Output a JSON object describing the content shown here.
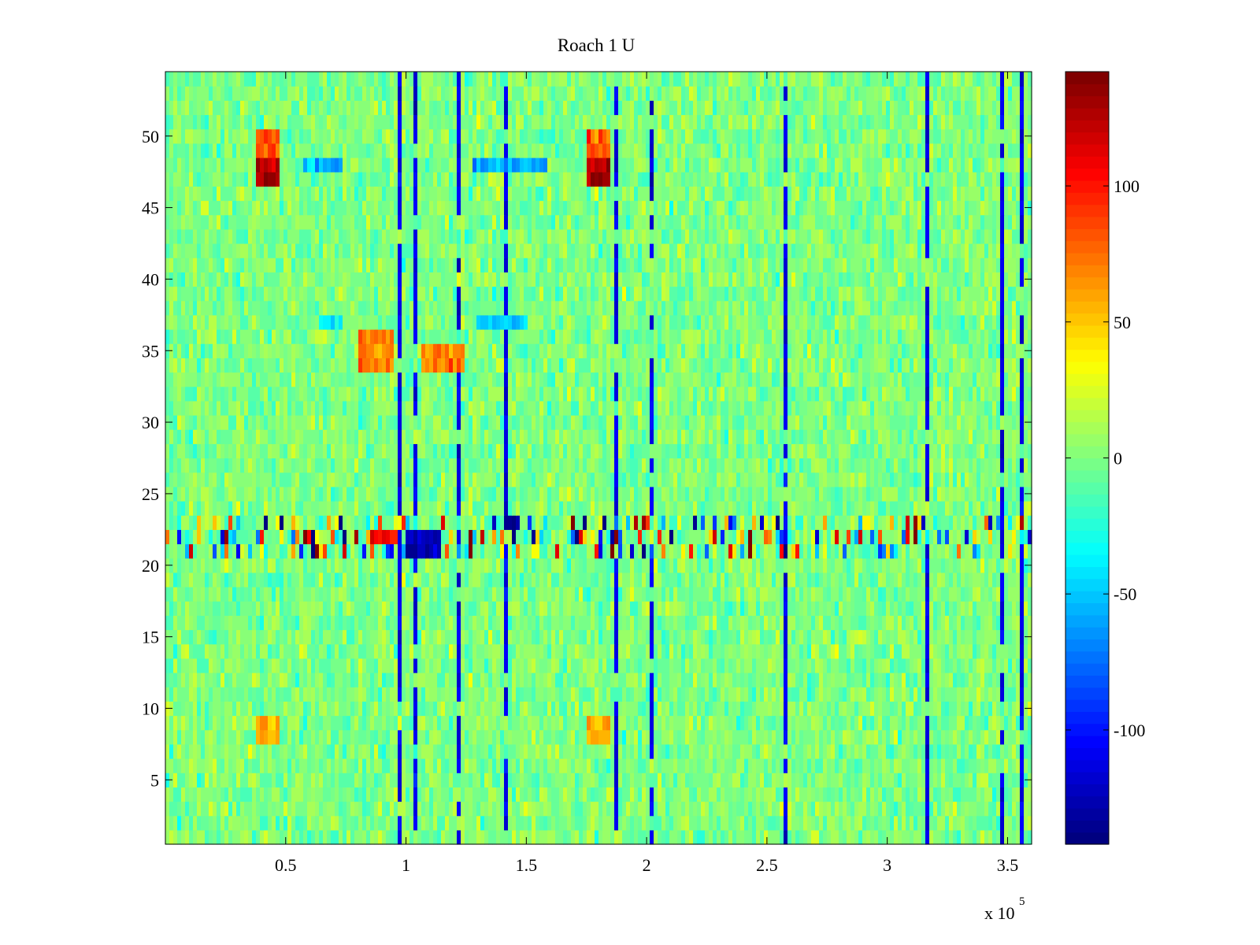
{
  "chart_data": {
    "type": "heatmap",
    "title": "Roach 1 U",
    "xlabel": "",
    "ylabel": "",
    "x_range": [
      0,
      360000
    ],
    "y_range": [
      0.5,
      54.5
    ],
    "x_ticks": [
      50000,
      100000,
      150000,
      200000,
      250000,
      300000,
      350000
    ],
    "x_tick_labels": [
      "0.5",
      "1",
      "1.5",
      "2",
      "2.5",
      "3",
      "3.5"
    ],
    "x_exponent_label": {
      "base": "x 10",
      "exponent": "5"
    },
    "y_ticks": [
      5,
      10,
      15,
      20,
      25,
      30,
      35,
      40,
      45,
      50
    ],
    "y_tick_labels": [
      "5",
      "10",
      "15",
      "20",
      "25",
      "30",
      "35",
      "40",
      "45",
      "50"
    ],
    "rows": 54,
    "colormap": "jet",
    "colorbar": {
      "range": [
        -142,
        142
      ],
      "ticks": [
        -100,
        -50,
        0,
        50,
        100
      ],
      "tick_labels": [
        "-100",
        "-50",
        "0",
        "50",
        "100"
      ],
      "levels": 64
    },
    "background_value": 0,
    "noise_amplitude": 28,
    "grid": false,
    "features": [
      {
        "kind": "hot-patch",
        "rows": [
          47,
          48
        ],
        "x": [
          38000,
          48000
        ],
        "value": 130
      },
      {
        "kind": "hot-patch",
        "rows": [
          49,
          50
        ],
        "x": [
          38000,
          48000
        ],
        "value": 80
      },
      {
        "kind": "hot-patch",
        "rows": [
          47,
          48
        ],
        "x": [
          175000,
          185000
        ],
        "value": 130
      },
      {
        "kind": "hot-patch",
        "rows": [
          49,
          50
        ],
        "x": [
          175000,
          185000
        ],
        "value": 80
      },
      {
        "kind": "cold-patch",
        "rows": [
          48
        ],
        "x": [
          57000,
          74000
        ],
        "value": -60
      },
      {
        "kind": "cold-patch",
        "rows": [
          48
        ],
        "x": [
          127000,
          158000
        ],
        "value": -60
      },
      {
        "kind": "warm-patch",
        "rows": [
          34,
          35,
          36
        ],
        "x": [
          80000,
          95000
        ],
        "value": 70
      },
      {
        "kind": "warm-patch",
        "rows": [
          34,
          35
        ],
        "x": [
          107000,
          124000
        ],
        "value": 70
      },
      {
        "kind": "cold-patch",
        "rows": [
          37
        ],
        "x": [
          63000,
          73000
        ],
        "value": -45
      },
      {
        "kind": "cold-patch",
        "rows": [
          37
        ],
        "x": [
          130000,
          150000
        ],
        "value": -45
      },
      {
        "kind": "warm-patch",
        "rows": [
          8,
          9
        ],
        "x": [
          38000,
          48000
        ],
        "value": 60
      },
      {
        "kind": "warm-patch",
        "rows": [
          8,
          9
        ],
        "x": [
          175000,
          185000
        ],
        "value": 60
      },
      {
        "kind": "noisy-band",
        "rows": [
          21,
          22,
          23
        ],
        "x": [
          0,
          360000
        ],
        "amplitude": 110
      },
      {
        "kind": "cold-patch",
        "rows": [
          21,
          22
        ],
        "x": [
          100000,
          115000
        ],
        "value": -125
      },
      {
        "kind": "cold-patch",
        "rows": [
          23
        ],
        "x": [
          140000,
          148000
        ],
        "value": -125
      },
      {
        "kind": "hot-patch",
        "rows": [
          22
        ],
        "x": [
          85000,
          95000
        ],
        "value": 100
      }
    ]
  }
}
